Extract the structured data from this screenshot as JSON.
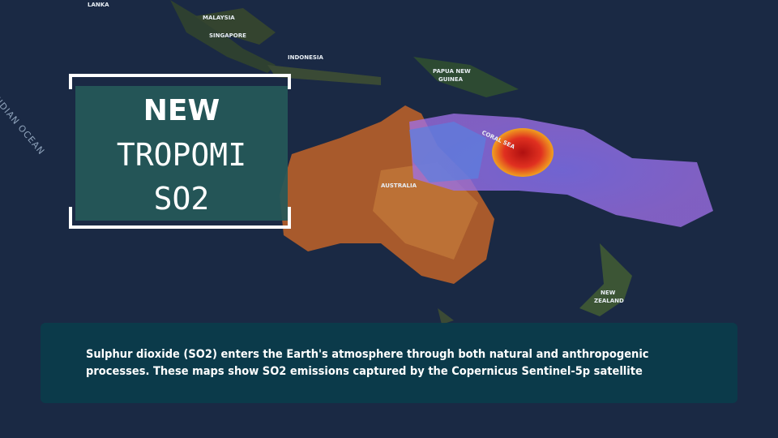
{
  "map": {
    "labels": {
      "lanka": "LANKA",
      "malaysia": "MALAYSIA",
      "singapore": "SINGAPORE",
      "indonesia": "INDONESIA",
      "papua": "PAPUA NEW",
      "guinea": "GUINEA",
      "australia": "AUSTRALIA",
      "coral_sea": "CORAL SEA",
      "new": "NEW",
      "zealand": "ZEALAND",
      "indian_ocean": "INDIAN OCEAN"
    }
  },
  "title_box": {
    "line1": "NEW",
    "line2": "TROPOMI",
    "line3": "SO2"
  },
  "caption": {
    "line1": "Sulphur dioxide (SO2) enters the Earth's atmosphere through both natural and anthropogenic",
    "line2": "processes. These maps show SO2 emissions captured by the Copernicus Sentinel-5p satellite"
  }
}
